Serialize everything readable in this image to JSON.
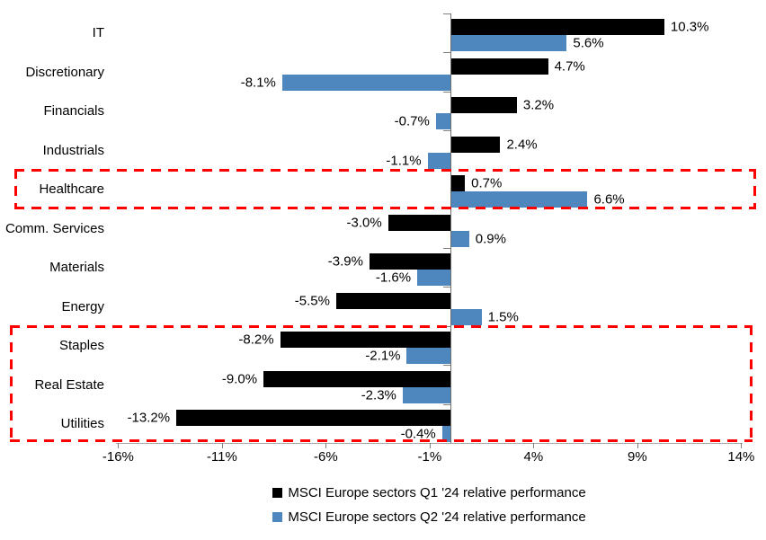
{
  "chart_data": {
    "type": "bar",
    "orientation": "horizontal",
    "title": "",
    "categories": [
      "IT",
      "Discretionary",
      "Financials",
      "Industrials",
      "Healthcare",
      "Comm. Services",
      "Materials",
      "Energy",
      "Staples",
      "Real Estate",
      "Utilities"
    ],
    "series": [
      {
        "name": "MSCI Europe sectors Q1 '24 relative performance",
        "color": "#000000",
        "values": [
          10.3,
          4.7,
          3.2,
          2.4,
          0.7,
          -3.0,
          -3.9,
          -5.5,
          -8.2,
          -9.0,
          -13.2
        ]
      },
      {
        "name": "MSCI Europe sectors Q2 '24 relative performance",
        "color": "#4E86BE",
        "values": [
          5.6,
          -8.1,
          -0.7,
          -1.1,
          6.6,
          0.9,
          -1.6,
          1.5,
          -2.1,
          -2.3,
          -0.4
        ]
      }
    ],
    "value_label_format": "one-decimal-percent",
    "x_axis": {
      "tick_labels": [
        "-16%",
        "-11%",
        "-6%",
        "-1%",
        "4%",
        "9%",
        "14%"
      ],
      "tick_values": [
        -16,
        -11,
        -6,
        -1,
        4,
        9,
        14
      ],
      "range": [
        -16,
        14
      ]
    },
    "grid": false,
    "legend_position": "bottom",
    "highlights": [
      {
        "name": "highlight-box-healthcare",
        "categories": [
          "Healthcare"
        ],
        "color": "#FF0000",
        "style": "dashed"
      },
      {
        "name": "highlight-box-staples-realestate-utilities",
        "categories": [
          "Staples",
          "Real Estate",
          "Utilities"
        ],
        "color": "#FF0000",
        "style": "dashed"
      }
    ]
  }
}
